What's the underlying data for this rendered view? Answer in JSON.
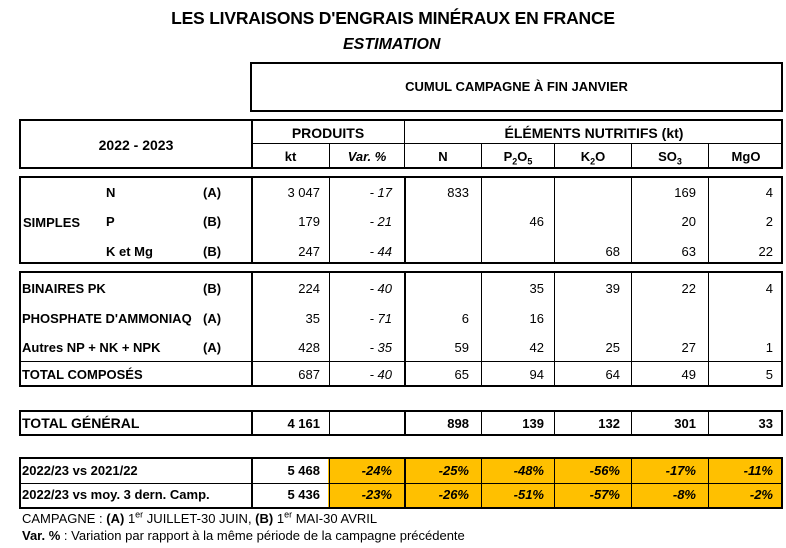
{
  "title": "LES LIVRAISONS D'ENGRAIS MINÉRAUX EN FRANCE",
  "subtitle": "ESTIMATION",
  "period_header": "CUMUL CAMPAGNE À FIN JANVIER",
  "season_label": "2022 - 2023",
  "headers": {
    "produits": "PRODUITS",
    "elements": "ÉLÉMENTS NUTRITIFS (kt)",
    "kt": "kt",
    "var": "Var. %",
    "n": "N",
    "p_main": "P",
    "p_sub1": "2",
    "p_o": "O",
    "p_sub2": "5",
    "k_main": "K",
    "k_sub": "2",
    "k_o": "O",
    "so_main": "SO",
    "so_sub": "3",
    "mgo": "MgO"
  },
  "simples_label": "SIMPLES",
  "rows_simples": [
    {
      "name": "N",
      "code": "(A)",
      "kt": "3 047",
      "var": "- 17",
      "n": "833",
      "p": "",
      "k": "",
      "so3": "169",
      "mgo": "4"
    },
    {
      "name": "P",
      "code": "(B)",
      "kt": "179",
      "var": "- 21",
      "n": "",
      "p": "46",
      "k": "",
      "so3": "20",
      "mgo": "2"
    },
    {
      "name": "K et Mg",
      "code": "(B)",
      "kt": "247",
      "var": "- 44",
      "n": "",
      "p": "",
      "k": "68",
      "so3": "63",
      "mgo": "22"
    }
  ],
  "rows_composes": [
    {
      "name": "BINAIRES PK",
      "code": "(B)",
      "kt": "224",
      "var": "- 40",
      "n": "",
      "p": "35",
      "k": "39",
      "so3": "22",
      "mgo": "4"
    },
    {
      "name": "PHOSPHATE D'AMMONIAQ",
      "code": "(A)",
      "kt": "35",
      "var": "- 71",
      "n": "6",
      "p": "16",
      "k": "",
      "so3": "",
      "mgo": ""
    },
    {
      "name": "Autres NP + NK + NPK",
      "code": "(A)",
      "kt": "428",
      "var": "- 35",
      "n": "59",
      "p": "42",
      "k": "25",
      "so3": "27",
      "mgo": "1"
    },
    {
      "name": "TOTAL COMPOSÉS",
      "code": "",
      "kt": "687",
      "var": "- 40",
      "n": "65",
      "p": "94",
      "k": "64",
      "so3": "49",
      "mgo": "5"
    }
  ],
  "total_general": {
    "name": "TOTAL GÉNÉRAL",
    "kt": "4 161",
    "n": "898",
    "p": "139",
    "k": "132",
    "so3": "301",
    "mgo": "33"
  },
  "comparisons": [
    {
      "name": "2022/23 vs 2021/22",
      "kt": "5 468",
      "var": "-24%",
      "n": "-25%",
      "p": "-48%",
      "k": "-56%",
      "so3": "-17%",
      "mgo": "-11%"
    },
    {
      "name": "2022/23 vs moy. 3 dern. Camp.",
      "kt": "5 436",
      "var": "-23%",
      "n": "-26%",
      "p": "-51%",
      "k": "-57%",
      "so3": "-8%",
      "mgo": "-2%"
    }
  ],
  "footnote1": {
    "prefix": "CAMPAGNE : ",
    "a": "(A)",
    "a_num": " 1",
    "a_sup": "er",
    "a_text": " JUILLET-30 JUIN, ",
    "b": "(B)",
    "b_num": " 1",
    "b_sup": "er",
    "b_text": " MAI-30 AVRIL"
  },
  "footnote2": {
    "label": "Var. %",
    "text": " : Variation par rapport à la même période de la campagne précédente"
  },
  "colors": {
    "highlight": "#FFC000"
  }
}
